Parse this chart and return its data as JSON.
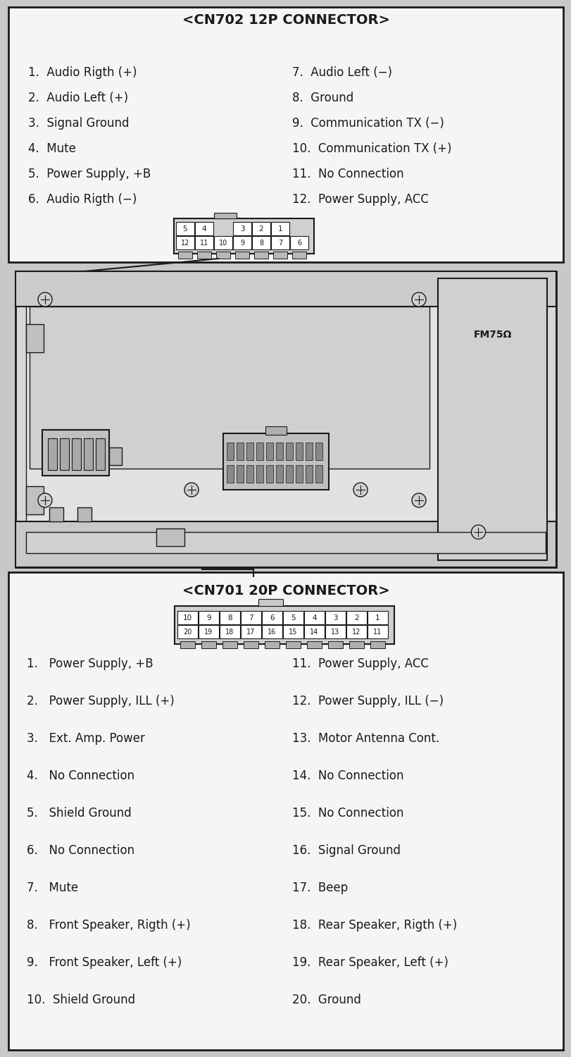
{
  "bg_color": "#c8c8c8",
  "top_box_color": "#f0f0f0",
  "line_color": "#1a1a1a",
  "title_cn702": "<CN702 12P CONNECTOR>",
  "cn702_left": [
    "1.  Audio Rigth (+)",
    "2.  Audio Left (+)",
    "3.  Signal Ground",
    "4.  Mute",
    "5.  Power Supply, +B",
    "6.  Audio Rigth (−)"
  ],
  "cn702_right": [
    "7.  Audio Left (−)",
    "8.  Ground",
    "9.  Communication TX (−)",
    "10.  Communication TX (+)",
    "11.  No Connection",
    "12.  Power Supply, ACC"
  ],
  "title_cn701": "<CN701 20P CONNECTOR>",
  "cn701_top_row": [
    "10",
    "9",
    "8",
    "7",
    "6",
    "5",
    "4",
    "3",
    "2",
    "1"
  ],
  "cn701_bot_row": [
    "20",
    "19",
    "18",
    "17",
    "16",
    "15",
    "14",
    "13",
    "12",
    "11"
  ],
  "cn701_left": [
    "1.   Power Supply, +B",
    "2.   Power Supply, ILL (+)",
    "3.   Ext. Amp. Power",
    "4.   No Connection",
    "5.   Shield Ground",
    "6.   No Connection",
    "7.   Mute",
    "8.   Front Speaker, Rigth (+)",
    "9.   Front Speaker, Left (+)",
    "10.  Shield Ground"
  ],
  "cn701_right": [
    "11.  Power Supply, ACC",
    "12.  Power Supply, ILL (−)",
    "13.  Motor Antenna Cont.",
    "14.  No Connection",
    "15.  No Connection",
    "16.  Signal Ground",
    "17.  Beep",
    "18.  Rear Speaker, Rigth (+)",
    "19.  Rear Speaker, Left (+)",
    "20.  Ground"
  ]
}
